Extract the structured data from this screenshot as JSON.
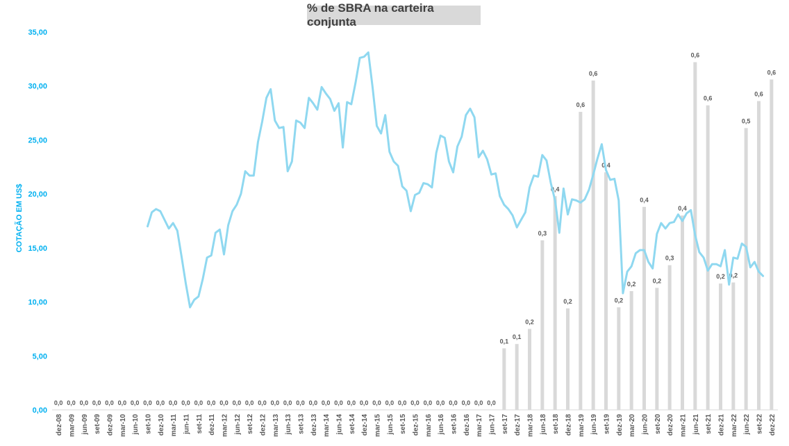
{
  "chart_data": {
    "type": "bar+line",
    "title": "% de SBRA na carteira conjunta",
    "ylabel": "COTAÇÃO EM US$",
    "ylim": [
      0,
      35
    ],
    "yticks": [
      "0,00",
      "5,00",
      "10,00",
      "15,00",
      "20,00",
      "25,00",
      "30,00",
      "35,00"
    ],
    "colors": {
      "bars": "#d9d9d9",
      "line": "#8fd8f0",
      "axis_labels": "#00b0f0",
      "text": "#595959"
    },
    "categories": [
      "dez-08",
      "mar-09",
      "jun-09",
      "set-09",
      "dez-09",
      "mar-10",
      "jun-10",
      "set-10",
      "dez-10",
      "mar-11",
      "jun-11",
      "set-11",
      "dez-11",
      "mar-12",
      "jun-12",
      "set-12",
      "dez-12",
      "mar-13",
      "jun-13",
      "set-13",
      "dez-13",
      "mar-14",
      "jun-14",
      "set-14",
      "dez-14",
      "mar-15",
      "jun-15",
      "set-15",
      "dez-15",
      "mar-16",
      "jun-16",
      "set-16",
      "dez-16",
      "mar-17",
      "jun-17",
      "set-17",
      "dez-17",
      "mar-18",
      "jun-18",
      "set-18",
      "dez-18",
      "mar-19",
      "jun-19",
      "set-19",
      "dez-19",
      "mar-20",
      "jun-20",
      "set-20",
      "dez-20",
      "mar-21",
      "jun-21",
      "set-21",
      "dez-21",
      "mar-22",
      "jun-22",
      "set-22",
      "dez-22"
    ],
    "bars": {
      "values": [
        0,
        0,
        0,
        0,
        0,
        0,
        0,
        0,
        0,
        0,
        0,
        0,
        0,
        0,
        0,
        0,
        0,
        0,
        0,
        0,
        0,
        0,
        0,
        0,
        0,
        0,
        0,
        0,
        0,
        0,
        0,
        0,
        0,
        0,
        0,
        0.1,
        0.1,
        0.2,
        0.3,
        0.4,
        0.2,
        0.6,
        0.6,
        0.4,
        0.2,
        0.2,
        0.4,
        0.2,
        0.3,
        0.4,
        0.6,
        0.6,
        0.2,
        0.2,
        0.5,
        0.6,
        0.6
      ],
      "labels": [
        "0,0",
        "0,0",
        "0,0",
        "0,0",
        "0,0",
        "0,0",
        "0,0",
        "0,0",
        "0,0",
        "0,0",
        "0,0",
        "0,0",
        "0,0",
        "0,0",
        "0,0",
        "0,0",
        "0,0",
        "0,0",
        "0,0",
        "0,0",
        "0,0",
        "0,0",
        "0,0",
        "0,0",
        "0,0",
        "0,0",
        "0,0",
        "0,0",
        "0,0",
        "0,0",
        "0,0",
        "0,0",
        "0,0",
        "0,0",
        "0,0",
        "0,1",
        "0,1",
        "0,2",
        "0,3",
        "0,4",
        "0,2",
        "0,6",
        "0,6",
        "0,4",
        "0,2",
        "0,2",
        "0,4",
        "0,2",
        "0,3",
        "0,4",
        "0,6",
        "0,6",
        "0,2",
        "0,2",
        "0,5",
        "0,6",
        "0,6"
      ],
      "height_on_price_scale": [
        0,
        0,
        0,
        0,
        0,
        0,
        0,
        0,
        0,
        0,
        0,
        0,
        0,
        0,
        0,
        0,
        0,
        0,
        0,
        0,
        0,
        0,
        0,
        0,
        0,
        0,
        0,
        0,
        0,
        0,
        0,
        0,
        0,
        0,
        0,
        5.7,
        6.1,
        7.5,
        15.7,
        19.8,
        9.4,
        27.6,
        30.5,
        22.0,
        9.5,
        11.0,
        18.8,
        11.3,
        13.4,
        18.0,
        32.2,
        28.2,
        11.7,
        11.8,
        26.1,
        28.6,
        30.6
      ]
    },
    "line": {
      "x_start_index": 7.5,
      "x_step": 0.333333,
      "values": [
        17.0,
        18.3,
        18.6,
        18.4,
        17.6,
        16.8,
        17.3,
        16.6,
        14.2,
        11.7,
        9.5,
        10.2,
        10.5,
        12.1,
        14.1,
        14.3,
        16.4,
        16.7,
        14.4,
        17.1,
        18.4,
        19.0,
        20.0,
        22.1,
        21.7,
        21.7,
        24.8,
        26.7,
        28.9,
        29.7,
        26.8,
        26.1,
        26.2,
        22.1,
        23.0,
        26.8,
        26.6,
        26.1,
        28.9,
        28.4,
        27.8,
        29.9,
        29.3,
        28.8,
        27.7,
        28.4,
        24.3,
        28.5,
        28.3,
        30.3,
        32.6,
        32.7,
        33.1,
        29.9,
        26.3,
        25.6,
        27.3,
        23.9,
        23.0,
        22.6,
        20.7,
        20.3,
        18.4,
        19.9,
        20.1,
        21.0,
        20.9,
        20.6,
        23.8,
        25.4,
        25.2,
        23.0,
        22.0,
        24.4,
        25.3,
        27.3,
        27.9,
        27.1,
        23.4,
        24.0,
        23.2,
        21.8,
        21.9,
        19.8,
        19.0,
        18.6,
        18.0,
        16.9,
        17.6,
        18.3,
        20.6,
        21.7,
        21.6,
        23.6,
        23.1,
        21.0,
        19.4,
        16.4,
        20.5,
        18.1,
        19.5,
        19.4,
        19.2,
        19.5,
        20.4,
        21.8,
        23.3,
        24.6,
        22.2,
        21.3,
        21.4,
        19.4,
        10.8,
        12.8,
        13.3,
        14.5,
        14.8,
        14.8,
        13.7,
        13.1,
        16.3,
        17.3,
        16.8,
        17.3,
        17.4,
        18.1,
        17.5,
        18.2,
        18.5,
        16.2,
        14.6,
        14.1,
        12.9,
        13.5,
        13.5,
        13.3,
        14.8,
        11.6,
        14.1,
        14.0,
        15.4,
        15.1,
        13.2,
        13.7,
        12.8,
        12.4
      ]
    }
  }
}
